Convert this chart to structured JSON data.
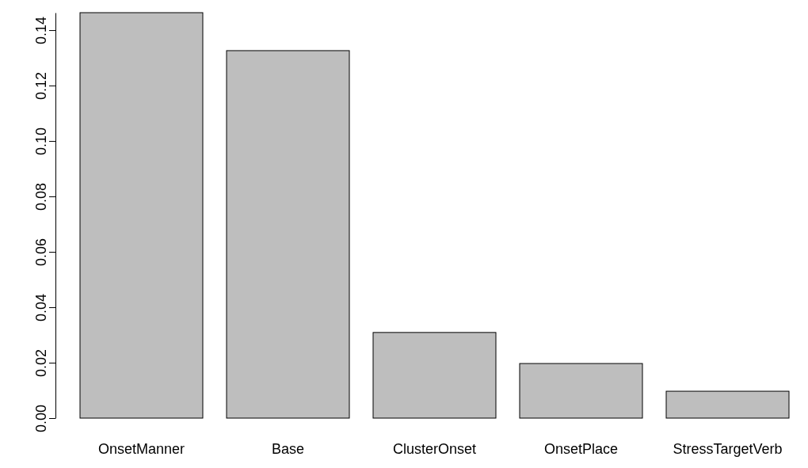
{
  "chart_data": {
    "type": "bar",
    "categories": [
      "OnsetManner",
      "Base",
      "ClusterOnset",
      "OnsetPlace",
      "StressTargetVerb"
    ],
    "values": [
      0.1463,
      0.1326,
      0.0309,
      0.0197,
      0.0097
    ],
    "color": "#bebebe",
    "ylim": [
      0,
      0.1463
    ],
    "yticks": [
      {
        "value": 0,
        "label": "0.00"
      },
      {
        "value": 0.02,
        "label": "0.02"
      },
      {
        "value": 0.04,
        "label": "0.04"
      },
      {
        "value": 0.06,
        "label": "0.06"
      },
      {
        "value": 0.08,
        "label": "0.08"
      },
      {
        "value": 0.1,
        "label": "0.10"
      },
      {
        "value": 0.12,
        "label": "0.12"
      },
      {
        "value": 0.14,
        "label": "0.14"
      }
    ],
    "grid": false
  }
}
